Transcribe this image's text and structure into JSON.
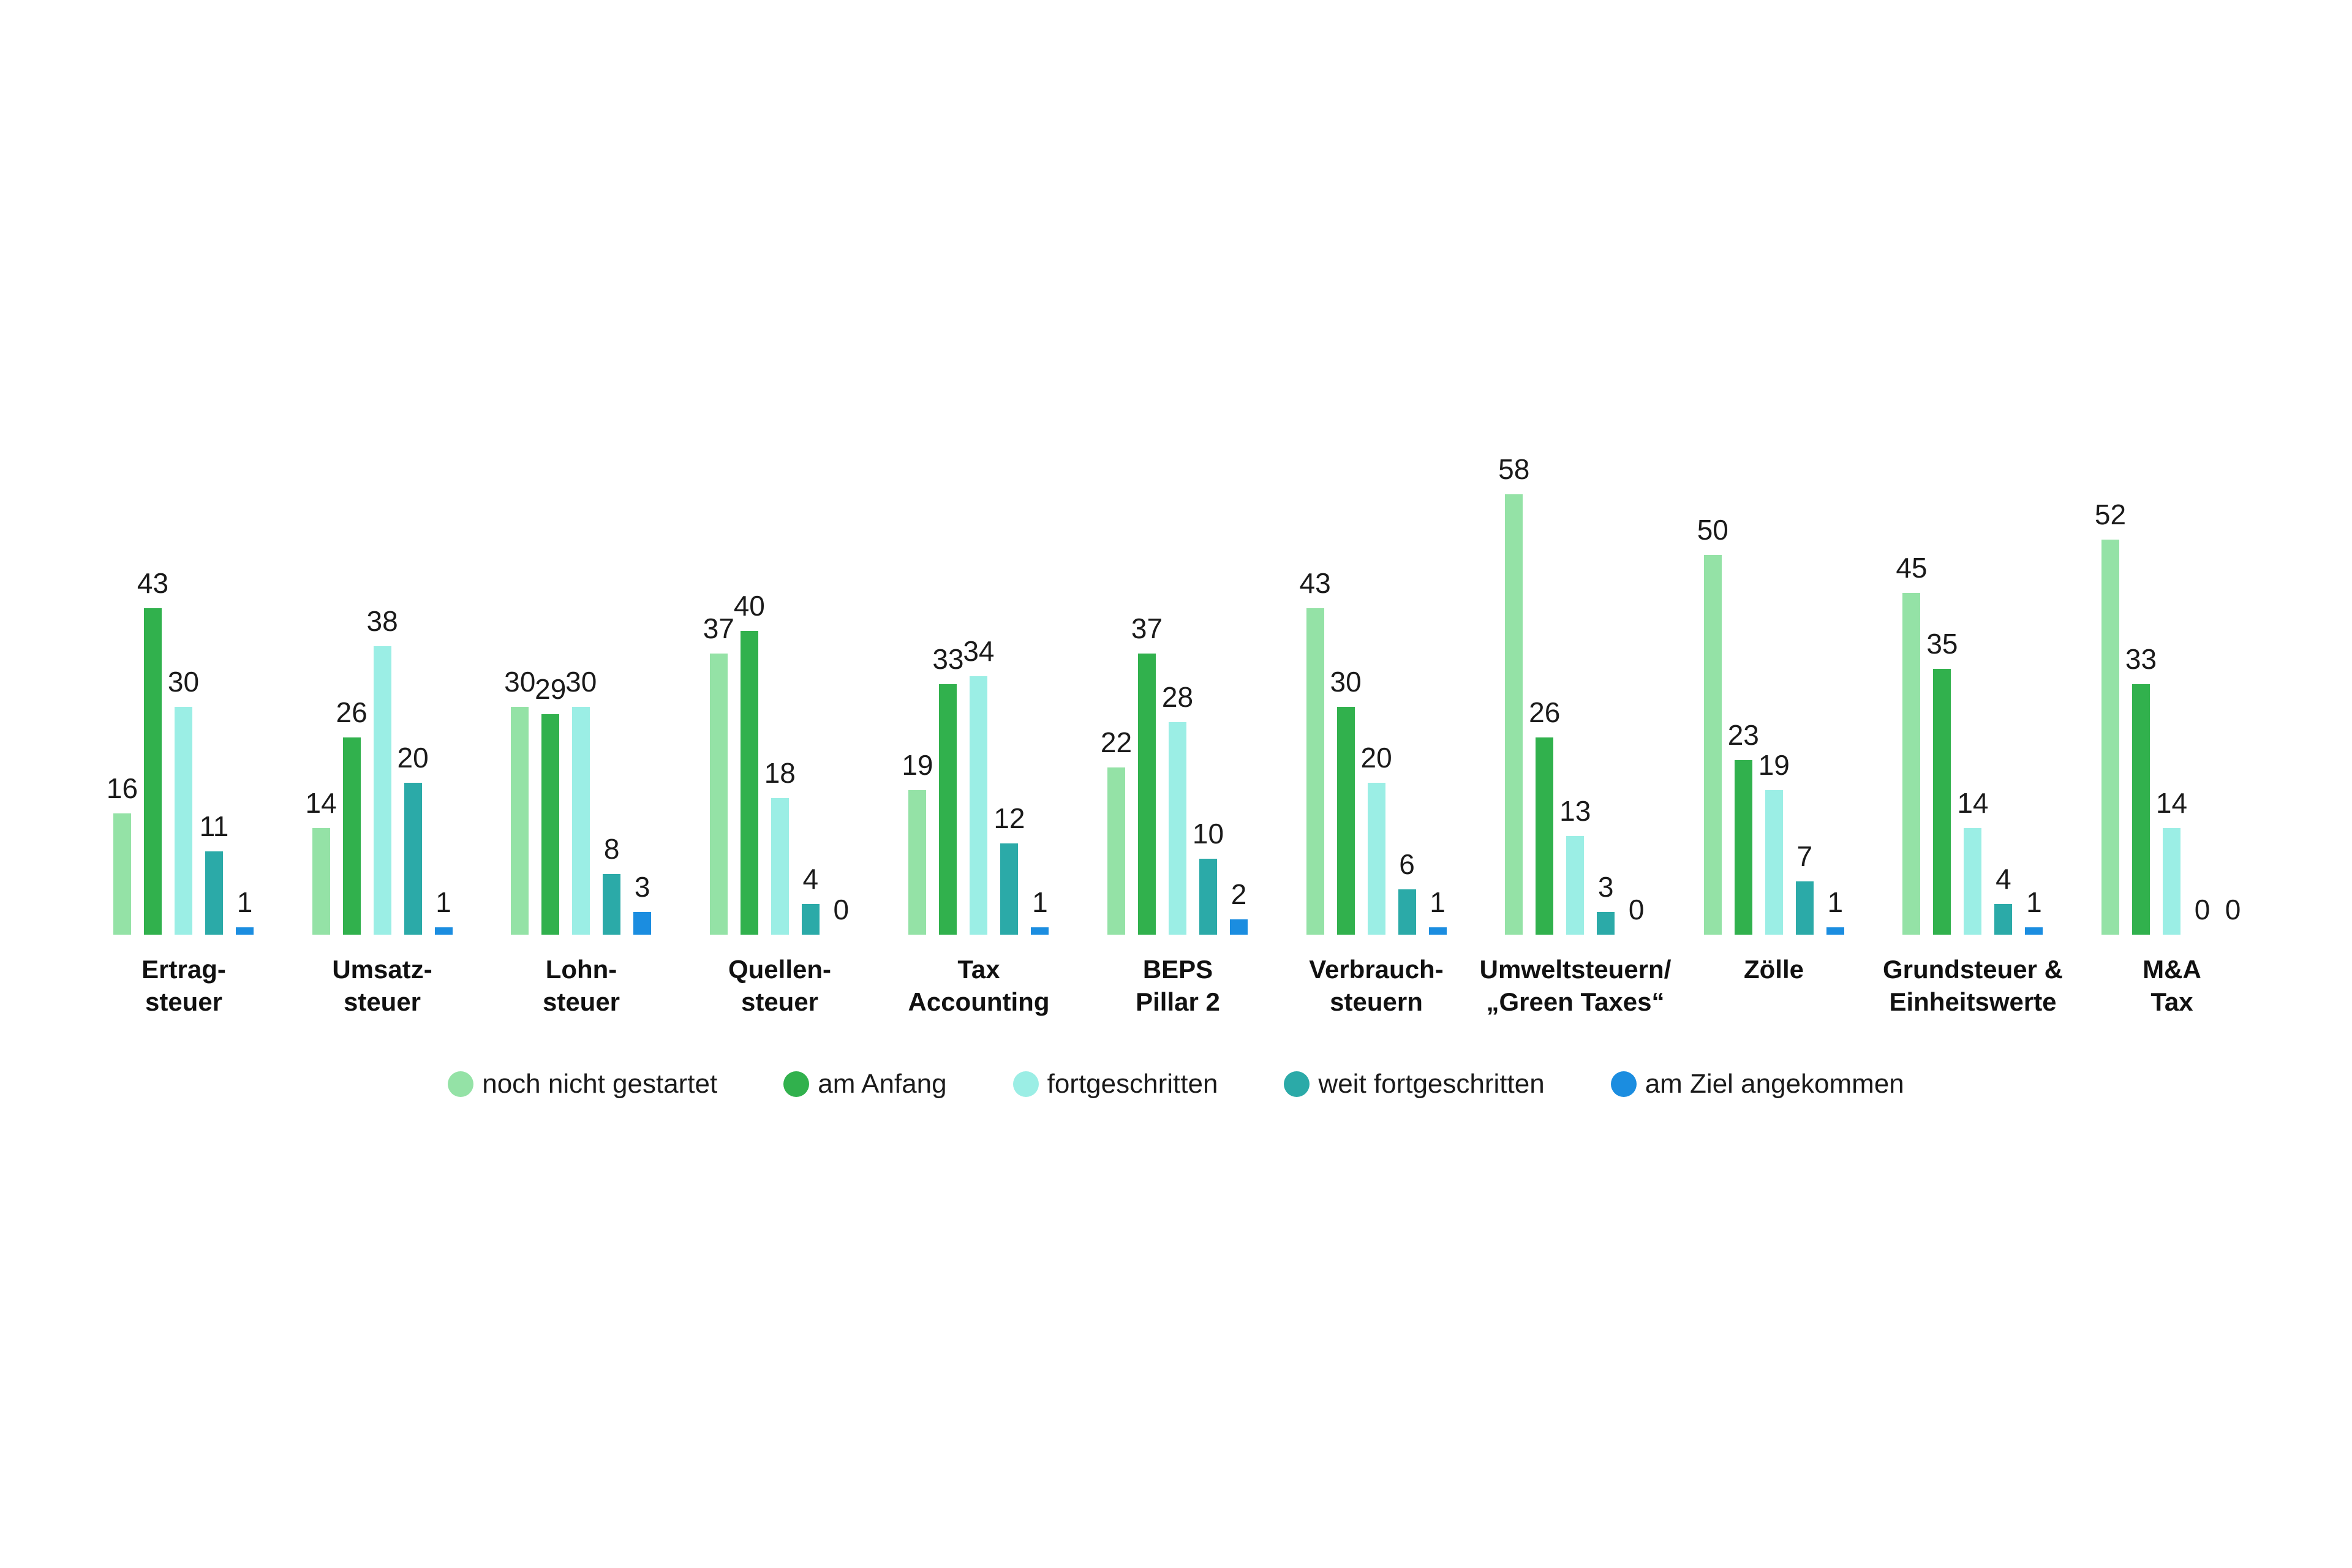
{
  "chart_data": {
    "type": "bar",
    "title": "",
    "xlabel": "",
    "ylabel": "",
    "grid": false,
    "axes_hidden": true,
    "legend_position": "bottom-center",
    "value_labels": "above-bars",
    "categories": [
      "Ertrag-\nsteuer",
      "Umsatz-\nsteuer",
      "Lohn-\nsteuer",
      "Quellen-\nsteuer",
      "Tax\nAccounting",
      "BEPS\nPillar 2",
      "Verbrauch-\nsteuern",
      "Umweltsteuern/\n„Green Taxes“",
      "Zölle",
      "Grundsteuer &\nEinheitswerte",
      "M&A\nTax"
    ],
    "series": [
      {
        "name": "noch nicht gestartet",
        "color": "#94E2A6",
        "values": [
          16,
          14,
          30,
          37,
          19,
          22,
          43,
          58,
          50,
          45,
          52
        ]
      },
      {
        "name": "am Anfang",
        "color": "#31B14D",
        "values": [
          43,
          26,
          29,
          40,
          33,
          37,
          30,
          26,
          23,
          35,
          33
        ]
      },
      {
        "name": "fortgeschritten",
        "color": "#9BEEE5",
        "values": [
          30,
          38,
          30,
          18,
          34,
          28,
          20,
          13,
          19,
          14,
          14
        ]
      },
      {
        "name": "weit fortgeschritten",
        "color": "#2BAAA8",
        "values": [
          11,
          20,
          8,
          4,
          12,
          10,
          6,
          3,
          7,
          4,
          0
        ]
      },
      {
        "name": "am Ziel angekommen",
        "color": "#1B8DE0",
        "values": [
          1,
          1,
          3,
          0,
          1,
          2,
          1,
          0,
          1,
          1,
          0
        ]
      }
    ],
    "ylim": [
      0,
      60
    ]
  }
}
